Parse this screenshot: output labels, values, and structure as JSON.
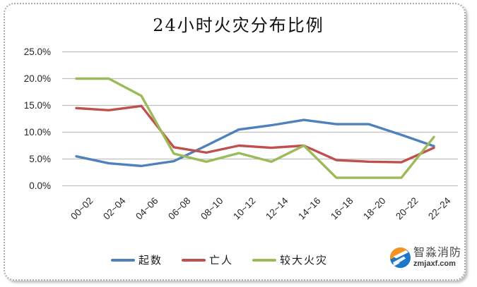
{
  "title": "24小时火灾分布比例",
  "chart_data": {
    "type": "line",
    "categories": [
      "00~02",
      "02~04",
      "04~06",
      "06~08",
      "08~10",
      "10~12",
      "12~14",
      "14~16",
      "16~18",
      "18~20",
      "20~22",
      "22~24"
    ],
    "series": [
      {
        "id": "qishu",
        "name": "起数",
        "color": "#4F81BD",
        "values": [
          5.5,
          4.2,
          3.7,
          4.6,
          7.5,
          10.5,
          11.3,
          12.3,
          11.5,
          11.5,
          9.5,
          7.4
        ]
      },
      {
        "id": "wangren",
        "name": "亡人",
        "color": "#C0504D",
        "values": [
          14.5,
          14.1,
          14.9,
          7.2,
          6.2,
          7.5,
          7.1,
          7.5,
          4.8,
          4.5,
          4.4,
          7.1
        ]
      },
      {
        "id": "jiaodahuozai",
        "name": "较大火灾",
        "color": "#9BBB59",
        "values": [
          20.0,
          20.0,
          16.8,
          6.0,
          4.5,
          6.1,
          4.5,
          7.5,
          1.5,
          1.5,
          1.5,
          9.1
        ]
      }
    ],
    "yticks": [
      "25.0%",
      "20.0%",
      "15.0%",
      "10.0%",
      "5.0%",
      "0.0%"
    ],
    "ylim": [
      0,
      25
    ],
    "ytick_step": 5,
    "grid": "horizontal-only",
    "legend_position": "bottom-center"
  },
  "watermark": {
    "brand": "智淼消防",
    "domain": "zmjaxf.com"
  },
  "colors": {
    "grid": "#BFBFBF",
    "axis_text": "#262626",
    "border_dots": "#ADADAD",
    "logo_blue": "#1E76C8",
    "logo_orange": "#F6921E"
  }
}
